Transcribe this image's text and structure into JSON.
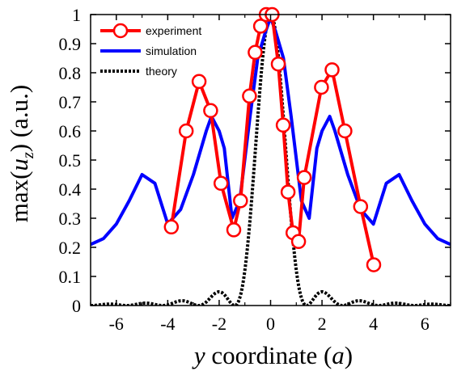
{
  "chart_data": {
    "type": "line",
    "xlabel": {
      "var": "y",
      "mid": " coordinate (",
      "unit": "a",
      "end": ")"
    },
    "ylabel": {
      "pre": "max(",
      "var": "u",
      "sub": "z",
      "post": ") (a.u.)"
    },
    "xlim": [
      -7,
      7
    ],
    "ylim": [
      0,
      1
    ],
    "x_ticks": [
      -6,
      -4,
      -2,
      0,
      2,
      4,
      6
    ],
    "x_tick_labels": [
      "-6",
      "-4",
      "-2",
      "0",
      "2",
      "4",
      "6"
    ],
    "y_ticks": [
      0,
      0.1,
      0.2,
      0.3,
      0.4,
      0.5,
      0.6,
      0.7,
      0.8,
      0.9,
      1
    ],
    "y_tick_labels": [
      "0",
      "0.1",
      "0.2",
      "0.3",
      "0.4",
      "0.5",
      "0.6",
      "0.7",
      "0.8",
      "0.9",
      "1"
    ],
    "grid": false,
    "legend_position": "top-left",
    "series": [
      {
        "name": "experiment",
        "color": "#ff0000",
        "style": "line-with-open-circles",
        "x": [
          -3.86,
          -3.28,
          -2.78,
          -2.33,
          -1.93,
          -1.43,
          -1.17,
          -0.82,
          -0.6,
          -0.39,
          -0.17,
          0.06,
          0.3,
          0.49,
          0.68,
          0.87,
          1.09,
          1.31,
          1.98,
          2.39,
          2.89,
          3.5,
          4.01
        ],
        "y": [
          0.27,
          0.6,
          0.77,
          0.67,
          0.42,
          0.26,
          0.36,
          0.72,
          0.87,
          0.96,
          1.0,
          1.0,
          0.83,
          0.62,
          0.39,
          0.25,
          0.22,
          0.44,
          0.75,
          0.81,
          0.6,
          0.34,
          0.14
        ]
      },
      {
        "name": "simulation",
        "color": "#0000ff",
        "style": "line",
        "x": [
          -7,
          -6.5,
          -6,
          -5.5,
          -5,
          -4.5,
          -4,
          -3.5,
          -3,
          -2.5,
          -2.3,
          -2,
          -1.8,
          -1.5,
          -1.2,
          -0.8,
          -0.5,
          -0.2,
          0,
          0.2,
          0.5,
          0.8,
          1.2,
          1.5,
          1.8,
          2,
          2.3,
          2.5,
          3,
          3.5,
          4,
          4.5,
          5,
          5.5,
          6,
          6.5,
          7
        ],
        "y": [
          0.21,
          0.23,
          0.28,
          0.36,
          0.45,
          0.42,
          0.28,
          0.33,
          0.45,
          0.6,
          0.65,
          0.6,
          0.54,
          0.3,
          0.36,
          0.65,
          0.85,
          0.94,
          0.99,
          0.94,
          0.85,
          0.65,
          0.36,
          0.3,
          0.54,
          0.6,
          0.65,
          0.6,
          0.45,
          0.33,
          0.28,
          0.42,
          0.45,
          0.36,
          0.28,
          0.23,
          0.21
        ]
      },
      {
        "name": "theory",
        "color": "#000000",
        "style": "dotted",
        "function": "sinc"
      }
    ]
  }
}
